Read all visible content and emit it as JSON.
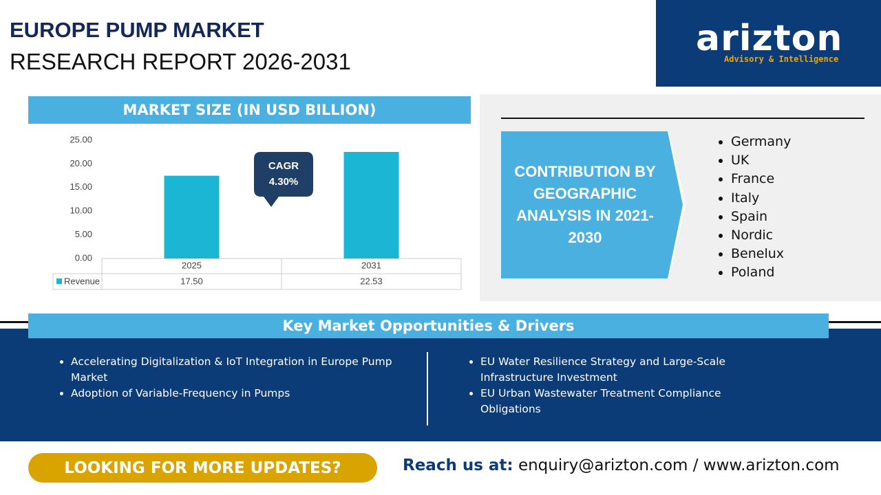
{
  "header": {
    "title_line1": "EUROPE PUMP MARKET",
    "title_line2": "RESEARCH REPORT 2026-2031"
  },
  "logo": {
    "name": "arizton",
    "tagline": "Advisory & Intelligence"
  },
  "chart_data": {
    "type": "bar",
    "title": "MARKET SIZE (IN USD BILLION)",
    "categories": [
      "2025",
      "2031"
    ],
    "series": [
      {
        "name": "Revenue",
        "color": "#1bb6d3",
        "values": [
          17.5,
          22.53
        ],
        "value_labels": [
          "17.50",
          "22.53"
        ]
      }
    ],
    "ylim": [
      0,
      25
    ],
    "yticks": [
      {
        "value": 0,
        "label": "0.00"
      },
      {
        "value": 5,
        "label": "5.00"
      },
      {
        "value": 10,
        "label": "10.00"
      },
      {
        "value": 15,
        "label": "15.00"
      },
      {
        "value": 20,
        "label": "20.00"
      },
      {
        "value": 25,
        "label": "25.00"
      }
    ],
    "grid": false,
    "annotation": {
      "label": "CAGR",
      "value": "4.30%"
    }
  },
  "geography": {
    "title": "CONTRIBUTION BY GEOGRAPHIC ANALYSIS IN 2021-2030",
    "items": [
      "Germany",
      "UK",
      "France",
      "Italy",
      "Spain",
      "Nordic",
      "Benelux",
      "Poland"
    ]
  },
  "drivers": {
    "heading": "Key Market Opportunities & Drivers",
    "left": [
      "Accelerating Digitalization & IoT Integration in Europe Pump Market",
      "Adoption of Variable-Frequency in Pumps"
    ],
    "right": [
      "EU Water Resilience Strategy and Large-Scale Infrastructure Investment",
      "EU Urban Wastewater Treatment Compliance Obligations"
    ]
  },
  "footer": {
    "cta": "LOOKING FOR MORE UPDATES?",
    "contact_label": "Reach us at:",
    "contact": "enquiry@arizton.com / www.arizton.com"
  }
}
